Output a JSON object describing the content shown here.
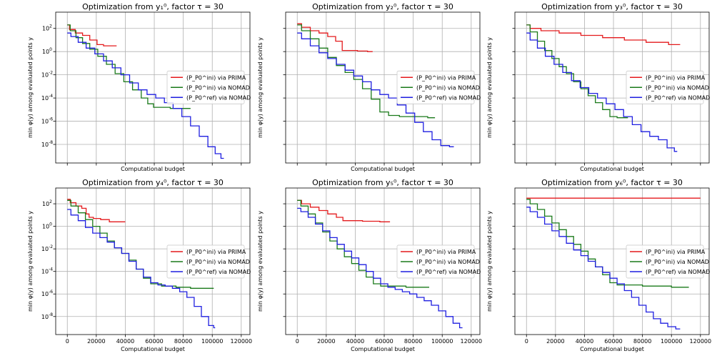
{
  "figure": {
    "type": "optimization-convergence-grid"
  },
  "chart_data": [
    {
      "type": "line",
      "title": "Optimization from y₁⁰, factor τ = 30",
      "xlabel": "Computational budget",
      "ylabel": "min φ(y) among evaluated points y",
      "xlim": [
        -8000,
        126000
      ],
      "ylog_range": [
        -9.6,
        3.4
      ],
      "x_ticks": [],
      "y_ticks": [
        "10^2",
        "10^0",
        "10^-2",
        "10^-4",
        "10^-6",
        "10^-8"
      ],
      "legend_position": "center-right",
      "series": [
        {
          "name": "(P_P0^ini) via PRIMA",
          "color": "#e41a1c",
          "x": [
            0,
            3000,
            8000,
            13000,
            18000,
            23000,
            27000,
            29000,
            34000
          ],
          "log10_y": [
            2.3,
            1.9,
            1.6,
            1.4,
            1.0,
            0.6,
            0.5,
            0.5,
            0.5
          ]
        },
        {
          "name": "(P_P0^ini) via NOMAD",
          "color": "#1a7a1a",
          "x": [
            0,
            4000,
            8000,
            13000,
            18000,
            24000,
            30000,
            36000,
            42000,
            48000,
            54000,
            57000,
            62000,
            68000,
            74000,
            80000,
            85000
          ],
          "log10_y": [
            2.3,
            1.8,
            1.2,
            0.7,
            0.2,
            -0.4,
            -1.1,
            -1.9,
            -2.6,
            -3.3,
            -4.0,
            -4.5,
            -4.8,
            -4.8,
            -4.9,
            -4.9,
            -4.9
          ]
        },
        {
          "name": "(P_P0^ref) via NOMAD",
          "color": "#1f1fe0",
          "x": [
            0,
            5000,
            10000,
            16000,
            22000,
            28000,
            34000,
            40000,
            46000,
            52000,
            58000,
            64000,
            70000,
            76000,
            82000,
            88000,
            94000,
            100000,
            104000,
            108000
          ],
          "log10_y": [
            1.6,
            1.3,
            0.8,
            0.3,
            -0.2,
            -0.8,
            -1.4,
            -2.0,
            -2.7,
            -3.3,
            -3.7,
            -4.0,
            -4.4,
            -4.9,
            -5.6,
            -6.4,
            -7.3,
            -8.2,
            -8.8,
            -9.2
          ]
        }
      ]
    },
    {
      "type": "line",
      "title": "Optimization from y₂⁰, factor τ = 30",
      "xlabel": "Computational budget",
      "ylabel": "min φ(y) among evaluated points y",
      "xlim": [
        -8000,
        126000
      ],
      "ylog_range": [
        -9.6,
        3.4
      ],
      "x_ticks": [],
      "y_ticks": [],
      "legend_position": "center-right",
      "series": [
        {
          "name": "(P_P0^ini) via PRIMA",
          "color": "#e41a1c",
          "x": [
            0,
            6000,
            12000,
            18000,
            24000,
            29000,
            33000,
            38000,
            45000,
            52000
          ],
          "log10_y": [
            2.4,
            2.1,
            1.8,
            1.6,
            1.3,
            0.9,
            0.1,
            0.1,
            0.05,
            0.0
          ]
        },
        {
          "name": "(P_P0^ini) via NOMAD",
          "color": "#1a7a1a",
          "x": [
            0,
            6000,
            12000,
            18000,
            24000,
            30000,
            36000,
            42000,
            48000,
            54000,
            60000,
            66000,
            75000,
            85000,
            95000
          ],
          "log10_y": [
            2.3,
            1.8,
            1.1,
            0.3,
            -0.5,
            -1.2,
            -1.8,
            -2.4,
            -3.2,
            -4.1,
            -5.2,
            -5.5,
            -5.6,
            -5.6,
            -5.7
          ]
        },
        {
          "name": "(P_P0^ref) via NOMAD",
          "color": "#1f1fe0",
          "x": [
            0,
            6000,
            12000,
            18000,
            24000,
            30000,
            36000,
            42000,
            48000,
            54000,
            60000,
            66000,
            72000,
            78000,
            84000,
            90000,
            96000,
            102000,
            108000
          ],
          "log10_y": [
            1.6,
            1.1,
            0.5,
            -0.1,
            -0.6,
            -1.1,
            -1.6,
            -2.1,
            -2.6,
            -3.3,
            -3.7,
            -4.0,
            -4.6,
            -5.3,
            -6.1,
            -6.9,
            -7.6,
            -8.1,
            -8.2
          ]
        }
      ]
    },
    {
      "type": "line",
      "title": "Optimization from y₃⁰, factor τ = 30",
      "xlabel": "Computational budget",
      "ylabel": "min φ(y) among evaluated points y",
      "xlim": [
        -8000,
        126000
      ],
      "ylog_range": [
        -9.6,
        3.4
      ],
      "x_ticks": [],
      "y_ticks": [],
      "legend_position": "center-right",
      "series": [
        {
          "name": "(P_P0^ini) via PRIMA",
          "color": "#e41a1c",
          "x": [
            0,
            5000,
            15000,
            30000,
            45000,
            60000,
            75000,
            90000,
            106000
          ],
          "log10_y": [
            2.3,
            2.0,
            1.8,
            1.6,
            1.4,
            1.2,
            1.0,
            0.8,
            0.6
          ]
        },
        {
          "name": "(P_P0^ini) via NOMAD",
          "color": "#1a7a1a",
          "x": [
            0,
            5000,
            10000,
            15000,
            20000,
            25000,
            30000,
            35000,
            40000,
            45000,
            50000,
            55000,
            60000,
            65000,
            70000
          ],
          "log10_y": [
            2.3,
            1.7,
            0.9,
            0.1,
            -0.6,
            -1.3,
            -1.9,
            -2.6,
            -3.2,
            -3.8,
            -4.4,
            -5.0,
            -5.6,
            -5.7,
            -5.7
          ]
        },
        {
          "name": "(P_P0^ref) via NOMAD",
          "color": "#1f1fe0",
          "x": [
            0,
            5000,
            10000,
            16000,
            22000,
            28000,
            34000,
            40000,
            46000,
            52000,
            58000,
            64000,
            70000,
            76000,
            82000,
            88000,
            94000,
            100000,
            104000
          ],
          "log10_y": [
            1.6,
            1.0,
            0.3,
            -0.4,
            -1.1,
            -1.8,
            -2.5,
            -3.1,
            -3.6,
            -4.0,
            -4.5,
            -5.0,
            -5.6,
            -6.3,
            -6.9,
            -7.3,
            -7.6,
            -8.3,
            -8.6
          ]
        }
      ]
    },
    {
      "type": "line",
      "title": "Optimization from y₄⁰, factor τ = 30",
      "xlabel": "Computational budget",
      "ylabel": "min φ(y) among evaluated points y",
      "xlim": [
        -8000,
        126000
      ],
      "ylog_range": [
        -9.6,
        3.4
      ],
      "x_ticks": [
        "0",
        "20000",
        "40000",
        "60000",
        "80000",
        "100000",
        "120000"
      ],
      "y_ticks": [
        "10^2",
        "10^0",
        "10^-2",
        "10^-4",
        "10^-6",
        "10^-8"
      ],
      "legend_position": "center-right",
      "series": [
        {
          "name": "(P_P0^ini) via PRIMA",
          "color": "#e41a1c",
          "x": [
            0,
            4000,
            8000,
            12000,
            14000,
            16000,
            20000,
            26000,
            32000,
            40000
          ],
          "log10_y": [
            2.4,
            2.1,
            1.8,
            1.6,
            1.1,
            0.8,
            0.7,
            0.6,
            0.4,
            0.4
          ]
        },
        {
          "name": "(P_P0^ini) via NOMAD",
          "color": "#1a7a1a",
          "x": [
            0,
            5000,
            10000,
            15000,
            20000,
            25000,
            30000,
            35000,
            40000,
            45000,
            50000,
            55000,
            60000,
            70000,
            80000,
            90000,
            101000
          ],
          "log10_y": [
            2.3,
            1.8,
            1.2,
            0.6,
            0.0,
            -0.6,
            -1.3,
            -1.9,
            -2.4,
            -3.0,
            -3.8,
            -4.6,
            -5.1,
            -5.3,
            -5.4,
            -5.5,
            -5.5
          ]
        },
        {
          "name": "(P_P0^ref) via NOMAD",
          "color": "#1f1fe0",
          "x": [
            0,
            5000,
            10000,
            15000,
            20000,
            25000,
            30000,
            35000,
            40000,
            45000,
            50000,
            55000,
            60000,
            65000,
            70000,
            75000,
            80000,
            85000,
            90000,
            95000,
            100000,
            102000
          ],
          "log10_y": [
            1.5,
            1.0,
            0.5,
            -0.1,
            -0.6,
            -1.0,
            -1.4,
            -1.9,
            -2.4,
            -3.1,
            -3.8,
            -4.5,
            -5.0,
            -5.2,
            -5.3,
            -5.5,
            -5.8,
            -6.3,
            -7.1,
            -8.0,
            -8.8,
            -9.0
          ]
        }
      ]
    },
    {
      "type": "line",
      "title": "Optimization from y₅⁰, factor τ = 30",
      "xlabel": "Computational budget",
      "ylabel": "min φ(y) among evaluated points y",
      "xlim": [
        -8000,
        126000
      ],
      "ylog_range": [
        -9.6,
        3.4
      ],
      "x_ticks": [
        "0",
        "20000",
        "40000",
        "60000",
        "80000",
        "100000",
        "120000"
      ],
      "y_ticks": [],
      "legend_position": "center-right",
      "series": [
        {
          "name": "(P_P0^ini) via PRIMA",
          "color": "#e41a1c",
          "x": [
            0,
            6000,
            12000,
            18000,
            24000,
            30000,
            33000,
            40000,
            50000,
            64000
          ],
          "log10_y": [
            2.3,
            2.0,
            1.7,
            1.4,
            1.1,
            0.8,
            0.5,
            0.5,
            0.45,
            0.4
          ]
        },
        {
          "name": "(P_P0^ini) via NOMAD",
          "color": "#1a7a1a",
          "x": [
            0,
            5000,
            10000,
            15000,
            20000,
            25000,
            30000,
            35000,
            40000,
            45000,
            50000,
            55000,
            60000,
            70000,
            80000,
            91000
          ],
          "log10_y": [
            2.3,
            1.8,
            1.1,
            0.3,
            -0.5,
            -1.3,
            -2.0,
            -2.7,
            -3.3,
            -3.9,
            -4.5,
            -5.1,
            -5.3,
            -5.3,
            -5.4,
            -5.4
          ]
        },
        {
          "name": "(P_P0^ref) via NOMAD",
          "color": "#1f1fe0",
          "x": [
            0,
            5000,
            10000,
            15000,
            20000,
            25000,
            30000,
            35000,
            40000,
            45000,
            50000,
            55000,
            60000,
            65000,
            70000,
            75000,
            80000,
            85000,
            90000,
            95000,
            100000,
            105000,
            110000,
            114000
          ],
          "log10_y": [
            1.6,
            1.3,
            0.8,
            0.2,
            -0.4,
            -1.0,
            -1.6,
            -2.2,
            -2.8,
            -3.4,
            -4.0,
            -4.6,
            -5.1,
            -5.4,
            -5.6,
            -5.8,
            -6.0,
            -6.3,
            -6.6,
            -7.0,
            -7.5,
            -8.0,
            -8.6,
            -9.0
          ]
        }
      ]
    },
    {
      "type": "line",
      "title": "Optimization from y₆⁰, factor τ = 30",
      "xlabel": "Computational budget",
      "ylabel": "min φ(y) among evaluated points y",
      "xlim": [
        -8000,
        126000
      ],
      "ylog_range": [
        -9.6,
        3.4
      ],
      "x_ticks": [
        "0",
        "20000",
        "40000",
        "60000",
        "80000",
        "100000",
        "120000"
      ],
      "y_ticks": [],
      "legend_position": "center-right",
      "series": [
        {
          "name": "(P_P0^ini) via PRIMA",
          "color": "#e41a1c",
          "x": [
            0,
            30000,
            60000,
            90000,
            120000
          ],
          "log10_y": [
            2.5,
            2.5,
            2.5,
            2.5,
            2.5
          ]
        },
        {
          "name": "(P_P0^ini) via NOMAD",
          "color": "#1a7a1a",
          "x": [
            0,
            5000,
            10000,
            15000,
            20000,
            25000,
            30000,
            35000,
            40000,
            45000,
            50000,
            55000,
            60000,
            65000,
            75000,
            85000,
            95000,
            105000,
            112000
          ],
          "log10_y": [
            2.4,
            2.0,
            1.5,
            0.9,
            0.3,
            -0.3,
            -0.9,
            -1.6,
            -2.2,
            -2.9,
            -3.6,
            -4.3,
            -5.0,
            -5.2,
            -5.2,
            -5.3,
            -5.3,
            -5.4,
            -5.4
          ]
        },
        {
          "name": "(P_P0^ref) via NOMAD",
          "color": "#1f1fe0",
          "x": [
            0,
            5000,
            10000,
            15000,
            20000,
            25000,
            30000,
            35000,
            40000,
            45000,
            50000,
            55000,
            60000,
            65000,
            70000,
            75000,
            80000,
            85000,
            90000,
            95000,
            100000,
            106000
          ],
          "log10_y": [
            1.7,
            1.3,
            0.8,
            0.2,
            -0.4,
            -0.9,
            -1.5,
            -2.1,
            -2.6,
            -3.1,
            -3.6,
            -4.1,
            -4.6,
            -5.1,
            -5.7,
            -6.3,
            -7.0,
            -7.6,
            -8.2,
            -8.6,
            -8.9,
            -9.1
          ]
        }
      ]
    }
  ]
}
